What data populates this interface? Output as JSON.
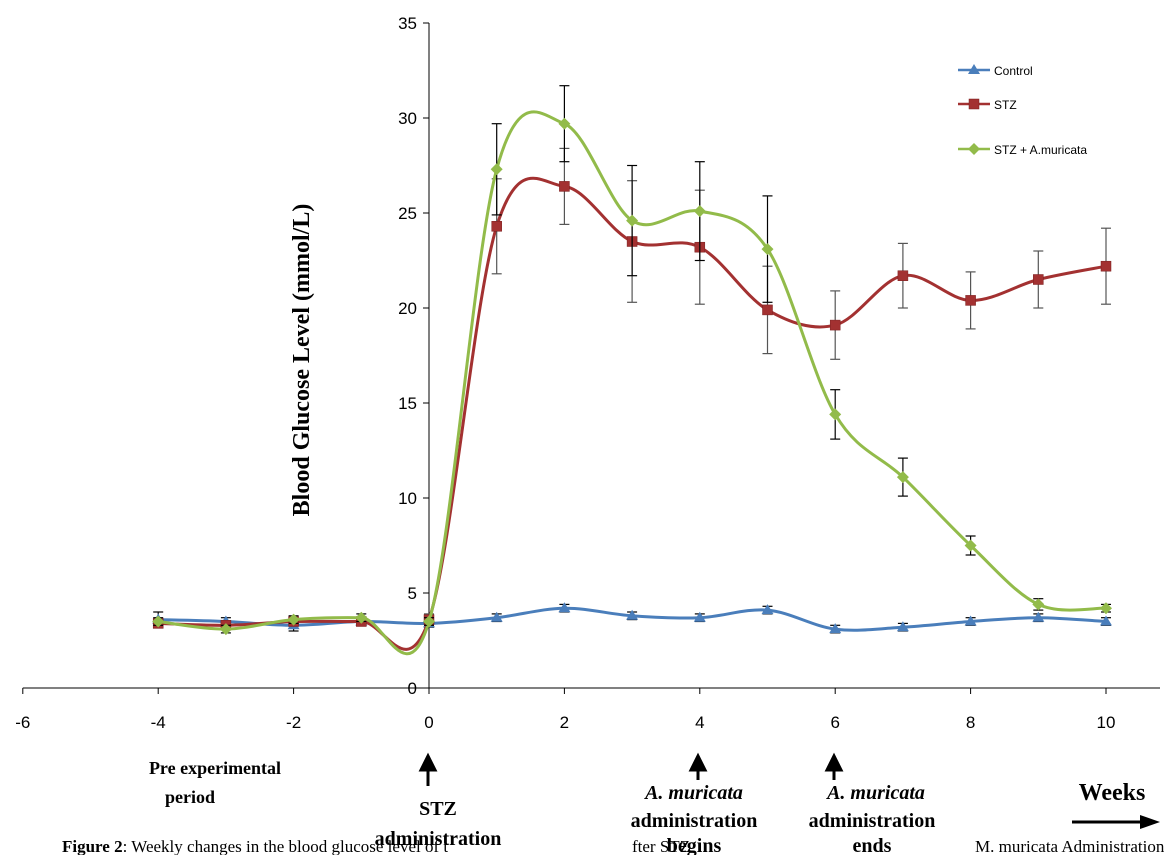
{
  "chart_data": {
    "type": "line",
    "ylabel": "Blood Glucose Level (mmol/L)",
    "xlabel": "Weeks",
    "xlim": [
      -6,
      11
    ],
    "ylim": [
      0,
      35
    ],
    "x_ticks": [
      -6,
      -4,
      -2,
      0,
      2,
      4,
      6,
      8,
      10
    ],
    "y_ticks": [
      0,
      5,
      10,
      15,
      20,
      25,
      30,
      35
    ],
    "legend_position": "top-right",
    "series": [
      {
        "name": "Control",
        "color": "#4a7ebb",
        "marker": "triangle",
        "points": [
          {
            "x": -4,
            "y": 3.6,
            "err": 0.4
          },
          {
            "x": -3,
            "y": 3.5,
            "err": 0.2
          },
          {
            "x": -2,
            "y": 3.3,
            "err": 0.3
          },
          {
            "x": -1,
            "y": 3.5,
            "err": 0.2
          },
          {
            "x": 0,
            "y": 3.4,
            "err": 0.2
          },
          {
            "x": 1,
            "y": 3.7,
            "err": 0.2
          },
          {
            "x": 2,
            "y": 4.2,
            "err": 0.2
          },
          {
            "x": 3,
            "y": 3.8,
            "err": 0.2
          },
          {
            "x": 4,
            "y": 3.7,
            "err": 0.2
          },
          {
            "x": 5,
            "y": 4.1,
            "err": 0.2
          },
          {
            "x": 6,
            "y": 3.1,
            "err": 0.2
          },
          {
            "x": 7,
            "y": 3.2,
            "err": 0.2
          },
          {
            "x": 8,
            "y": 3.5,
            "err": 0.2
          },
          {
            "x": 9,
            "y": 3.7,
            "err": 0.2
          },
          {
            "x": 10,
            "y": 3.5,
            "err": 0.2
          }
        ]
      },
      {
        "name": "STZ",
        "color": "#a33131",
        "marker": "square",
        "points": [
          {
            "x": -4,
            "y": 3.4,
            "err": 0.2
          },
          {
            "x": -3,
            "y": 3.3,
            "err": 0.2
          },
          {
            "x": -2,
            "y": 3.5,
            "err": 0.2
          },
          {
            "x": -1,
            "y": 3.5,
            "err": 0.2
          },
          {
            "x": 0,
            "y": 3.6,
            "err": 0.3
          },
          {
            "x": 1,
            "y": 24.3,
            "err": 2.5
          },
          {
            "x": 2,
            "y": 26.4,
            "err": 2.0
          },
          {
            "x": 3,
            "y": 23.5,
            "err": 3.2
          },
          {
            "x": 4,
            "y": 23.2,
            "err": 3.0
          },
          {
            "x": 5,
            "y": 19.9,
            "err": 2.3
          },
          {
            "x": 6,
            "y": 19.1,
            "err": 1.8
          },
          {
            "x": 7,
            "y": 21.7,
            "err": 1.7
          },
          {
            "x": 8,
            "y": 20.4,
            "err": 1.5
          },
          {
            "x": 9,
            "y": 21.5,
            "err": 1.5
          },
          {
            "x": 10,
            "y": 22.2,
            "err": 2.0
          }
        ]
      },
      {
        "name": "STZ + A.muricata",
        "color": "#92bb4a",
        "marker": "diamond",
        "points": [
          {
            "x": -4,
            "y": 3.5,
            "err": 0.2
          },
          {
            "x": -3,
            "y": 3.1,
            "err": 0.2
          },
          {
            "x": -2,
            "y": 3.6,
            "err": 0.2
          },
          {
            "x": -1,
            "y": 3.7,
            "err": 0.2
          },
          {
            "x": 0,
            "y": 3.5,
            "err": 0.2
          },
          {
            "x": 1,
            "y": 27.3,
            "err": 2.4
          },
          {
            "x": 2,
            "y": 29.7,
            "err": 2.0
          },
          {
            "x": 3,
            "y": 24.6,
            "err": 2.9
          },
          {
            "x": 4,
            "y": 25.1,
            "err": 2.6
          },
          {
            "x": 5,
            "y": 23.1,
            "err": 2.8
          },
          {
            "x": 6,
            "y": 14.4,
            "err": 1.3
          },
          {
            "x": 7,
            "y": 11.1,
            "err": 1.0
          },
          {
            "x": 8,
            "y": 7.5,
            "err": 0.5
          },
          {
            "x": 9,
            "y": 4.4,
            "err": 0.3
          },
          {
            "x": 10,
            "y": 4.2,
            "err": 0.2
          }
        ]
      }
    ]
  },
  "annotations": {
    "pre_line1": "Pre experimental",
    "pre_line2": "period",
    "stz_line1": "STZ",
    "stz_line2": "administration",
    "begin_italic": "A. muricata",
    "begin_line2": "administration",
    "begin_line3": "begins",
    "end_italic": "A. muricata",
    "end_line2": "administration",
    "end_line3": "ends",
    "weeks": "Weeks"
  },
  "caption": {
    "bold": "Figure 2",
    "text_left": ": Weekly changes in the blood glucose level of t",
    "text_mid": "fter STZ",
    "text_right": "M. muricata Administration"
  }
}
